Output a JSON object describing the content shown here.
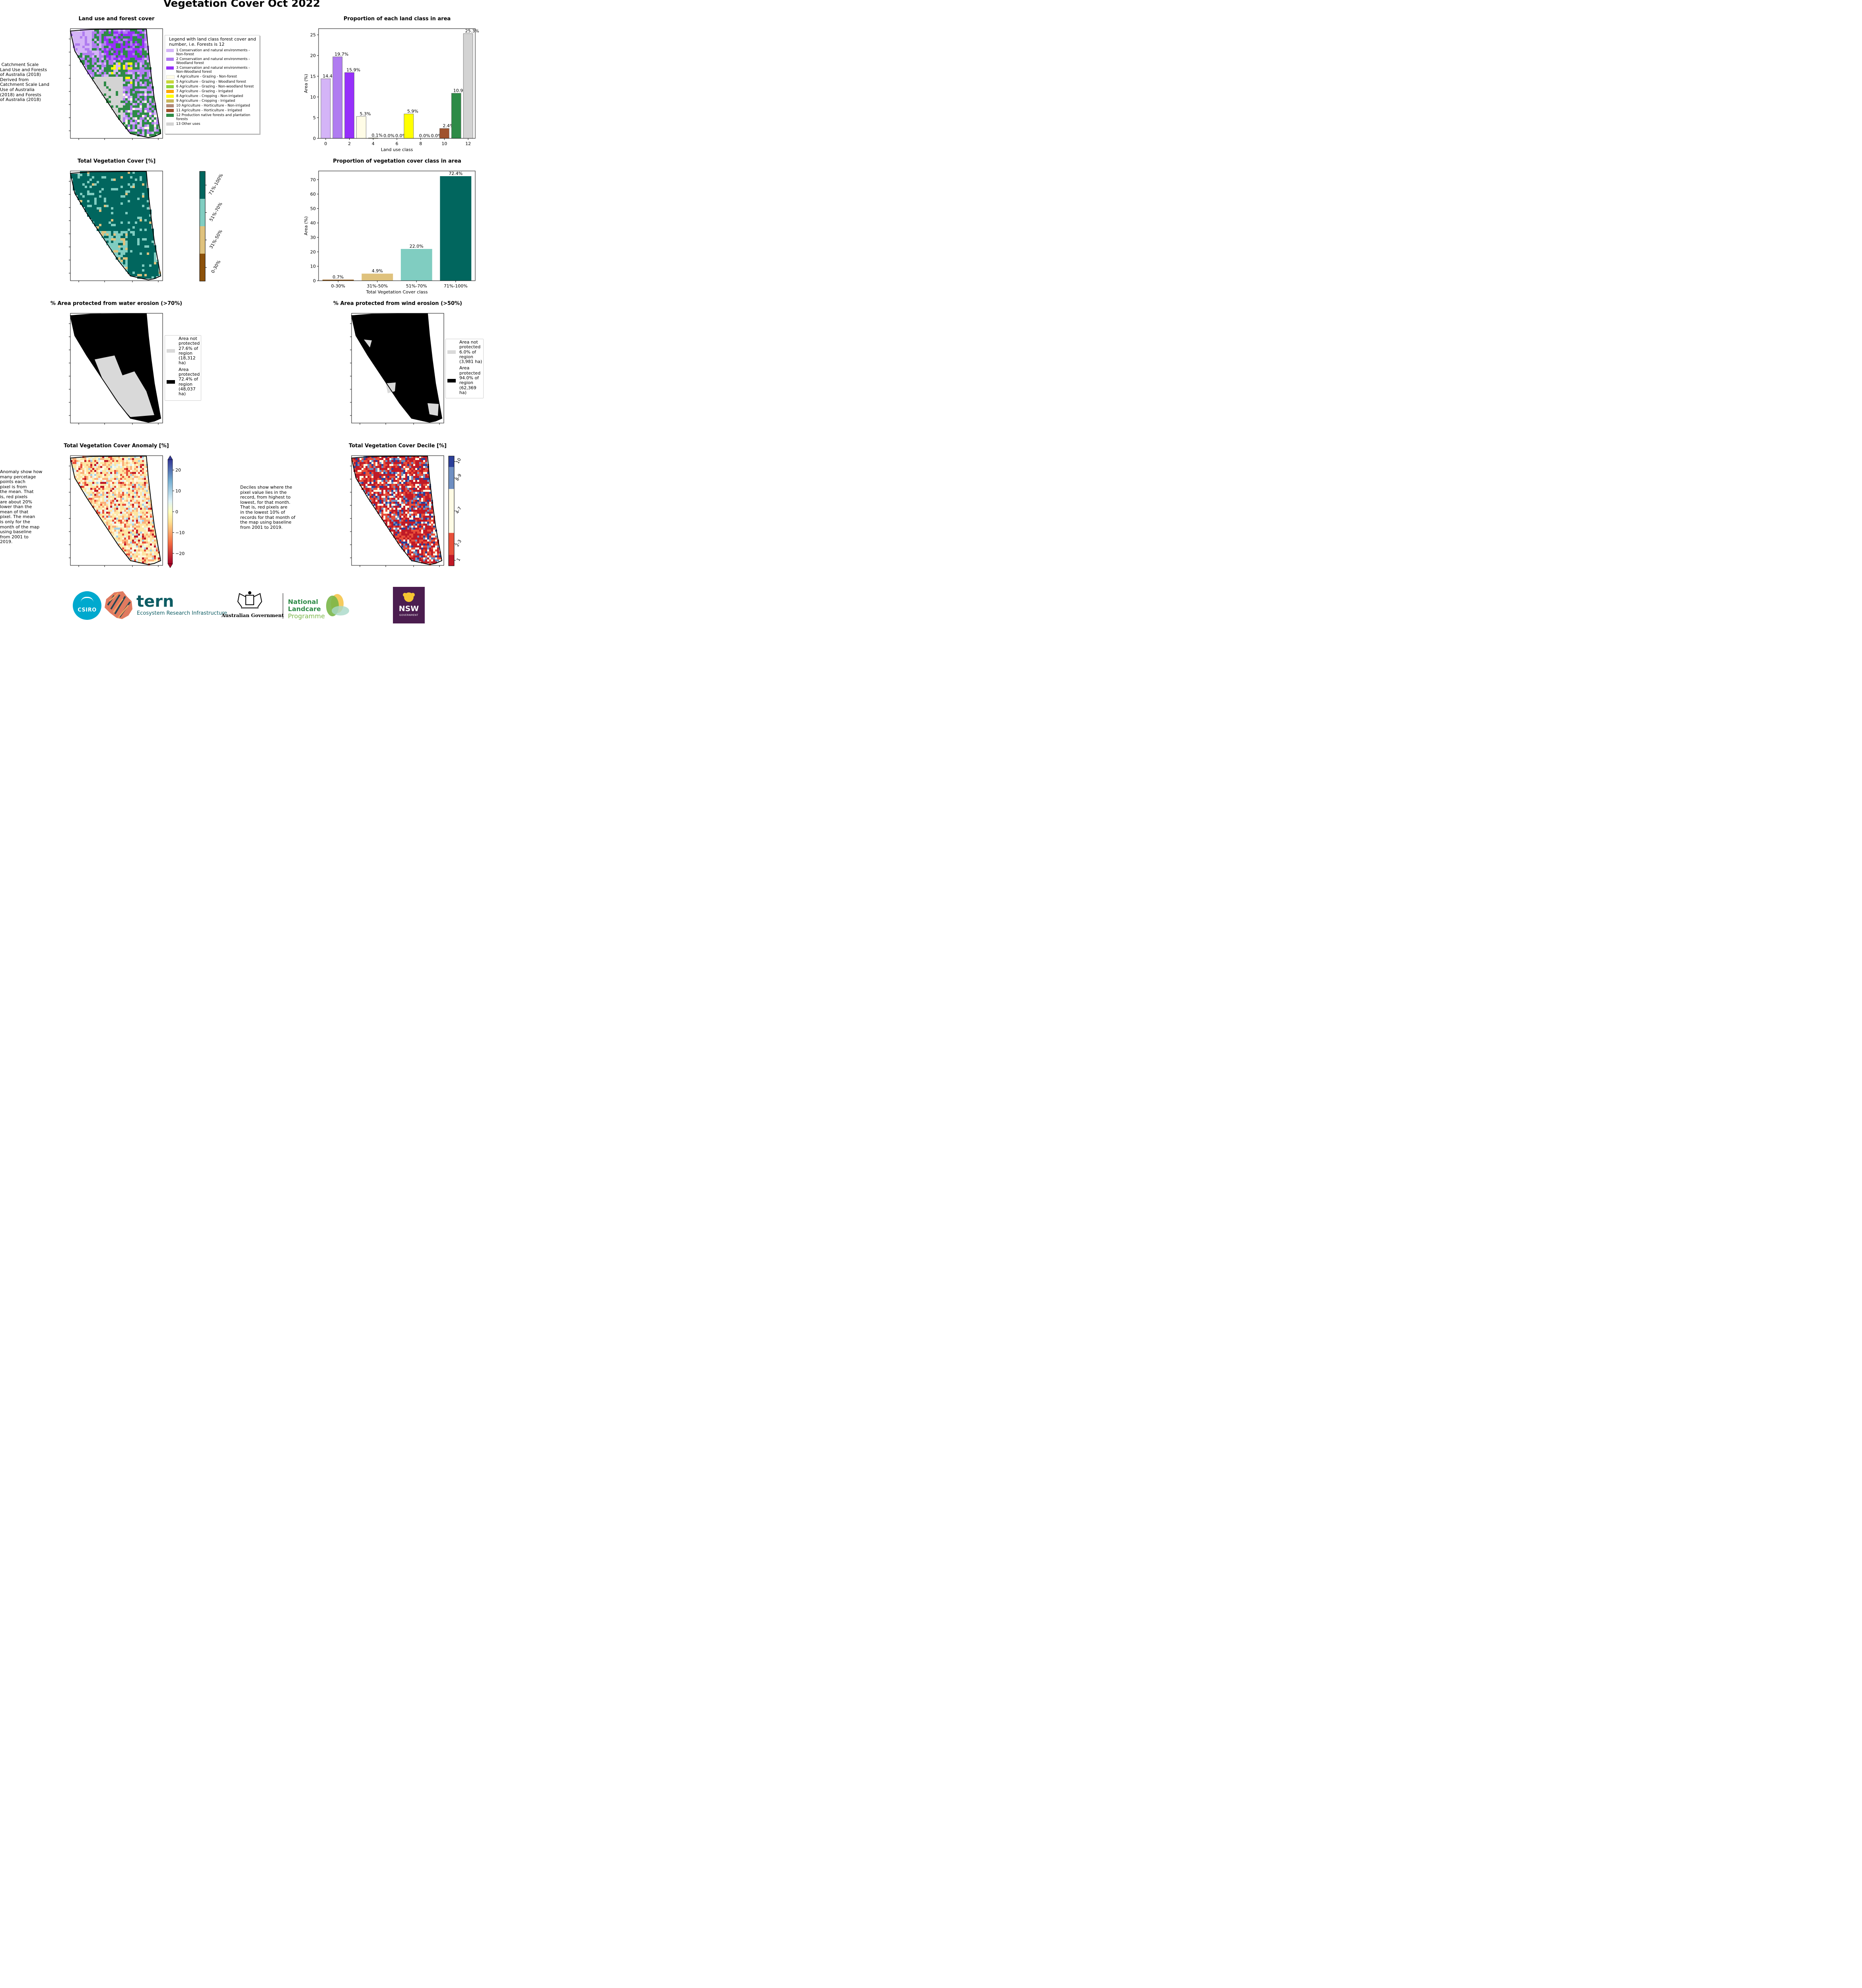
{
  "page": {
    "title": "Vegetation Cover Oct 2022",
    "panel_titles": {
      "landuse_map": "Land use and forest cover",
      "landuse_bar": "Proportion of each land class in area",
      "veg_map": "Total Vegetation Cover [%]",
      "veg_bar": "Proportion of vegetation cover class in area",
      "water_map": "% Area protected from water erosion (>70%)",
      "wind_map": "% Area protected from wind erosion (>50%)",
      "anomaly_map": "Total Vegetation Cover Anomaly [%]",
      "decile_map": "Total Vegetation Cover Decile [%]"
    },
    "notes": {
      "landuse": " Catchment Scale\nLand Use and Forests\nof Australia (2018)\nDerived from\nCatchment Scale Land\nUse of Australia\n(2018) and Forests\nof Australia (2018)",
      "anomaly": "Anomaly show how\nmany percetage\npoints each\npixel is from\nthe mean. That\nis, red pixels\nare about 20%\nlower than the\nmean of that\npixel. The mean\nis only for the\nmonth of the map\nusing baseline\nfrom 2001 to\n2019.",
      "decile": "Deciles show where the\npixel value lies in the\nrecord, from highest to\nlowest, for that month.\nThat is, red pixels are\nin the lowest 10% of\nrecords for that month of\nthe map using baseline\nfrom 2001 to 2019."
    },
    "landuse_legend": {
      "title": "Legend with land class forest cover and\nnumber, i.e. Forests is 12",
      "items": [
        {
          "label": "1 Conservation and natural environments -\nNon-forest",
          "color": "#d4b4f7"
        },
        {
          "label": "2 Conservation and natural environments -\nWoodland forest",
          "color": "#b07cf0"
        },
        {
          "label": "3 Conservation and natural environments -\nNon-Woodland forest",
          "color": "#9630fa"
        },
        {
          "label": "4 Agriculture - Grazing - Non-forest",
          "color": "#fffce6"
        },
        {
          "label": "5 Agriculture - Grazing - Woodland forest",
          "color": "#c8d63a"
        },
        {
          "label": "6 Agriculture - Grazing - Non-woodland forest",
          "color": "#8fd33a"
        },
        {
          "label": "7 Agriculture - Grazing - Irrigated",
          "color": "#ffa500"
        },
        {
          "label": "8 Agriculture - Cropping - Non-irrigated",
          "color": "#ffff00"
        },
        {
          "label": "9 Agriculture - Cropping - Irrigated",
          "color": "#c8b45a"
        },
        {
          "label": "10 Agriculture - Horticulture - Non-irrigated",
          "color": "#b08a78"
        },
        {
          "label": "11 Agriculture - Horticulture - Irrigated",
          "color": "#a0522d"
        },
        {
          "label": "12 Production native forests and plantation\nforests",
          "color": "#2e8b47"
        },
        {
          "label": "13 Other uses",
          "color": "#d3d3d3"
        }
      ]
    },
    "veg_colorbar": {
      "labels": [
        "0-30%",
        "31%-50%",
        "51%-70%",
        "71%-100%"
      ],
      "colors": [
        "#8c510a",
        "#dfc27d",
        "#80cdc1",
        "#01665e"
      ]
    },
    "water_legend": [
      {
        "label": "Area not\nprotected\n27.6% of\nregion\n(18,312\nha)",
        "color": "#d9d9d9"
      },
      {
        "label": "Area\nprotected\n72.4% of\nregion\n(48,037\nha)",
        "color": "#000000"
      }
    ],
    "wind_legend": [
      {
        "label": "Area not\nprotected\n6.0% of\nregion\n(3,981 ha)",
        "color": "#d9d9d9"
      },
      {
        "label": "Area\nprotected\n94.0% of\nregion\n(62,369\nha)",
        "color": "#000000"
      }
    ],
    "anomaly_colorbar": {
      "ticks": [
        "20",
        "10",
        "0",
        "−10",
        "−20"
      ],
      "values": [
        20,
        10,
        0,
        -10,
        -20
      ],
      "range": [
        -25,
        25
      ]
    },
    "decile_colorbar": {
      "labels": [
        "1",
        "2-3",
        "4-7",
        "8-9",
        "10"
      ]
    },
    "logos": {
      "csiro": "CSIRO",
      "tern": "tern",
      "tern_sub": "Ecosystem Research Infrastructure",
      "aus_gov": "Australian Government",
      "landcare_line1": "National",
      "landcare_line2": "Landcare",
      "landcare_line3": "Programme",
      "nsw": "NSW",
      "nsw_sub": "GOVERNMENT"
    }
  },
  "chart_data": [
    {
      "type": "bar",
      "title": "Proportion of each land class in area",
      "xlabel": "Land use class",
      "ylabel": "Area (%)",
      "x": [
        0,
        1,
        2,
        3,
        4,
        5,
        6,
        7,
        8,
        9,
        10,
        11,
        12
      ],
      "values": [
        14.4,
        19.7,
        15.9,
        5.3,
        0.1,
        0.0,
        0.0,
        5.9,
        0.0,
        0.0,
        2.4,
        10.9,
        25.3
      ],
      "labels": [
        "14.4%",
        "19.7%",
        "15.9%",
        "5.3%",
        "0.1%",
        "0.0%",
        "0.0%",
        "5.9%",
        "0.0%",
        "0.0%",
        "2.4%",
        "10.9%",
        "25.3%"
      ],
      "colors": [
        "#d4b4f7",
        "#b07cf0",
        "#9630fa",
        "#fffce6",
        "#c8d63a",
        "#8fd33a",
        "#ffa500",
        "#ffff00",
        "#c8b45a",
        "#b08a78",
        "#a0522d",
        "#2e8b47",
        "#d3d3d3"
      ],
      "xticks": [
        0,
        2,
        4,
        6,
        8,
        10,
        12
      ],
      "yticks": [
        0,
        5,
        10,
        15,
        20,
        25
      ],
      "xlim": [
        -0.6,
        12.6
      ],
      "ylim": [
        0,
        26.5
      ]
    },
    {
      "type": "bar",
      "title": "Proportion of vegetation cover class in area",
      "xlabel": "Total Vegetation Cover class",
      "ylabel": "Area (%)",
      "categories": [
        "0-30%",
        "31%-50%",
        "51%-70%",
        "71%-100%"
      ],
      "values": [
        0.7,
        4.9,
        22.0,
        72.4
      ],
      "labels": [
        "0.7%",
        "4.9%",
        "22.0%",
        "72.4%"
      ],
      "colors": [
        "#8c510a",
        "#dfc27d",
        "#80cdc1",
        "#01665e"
      ],
      "yticks": [
        0,
        10,
        20,
        30,
        40,
        50,
        60,
        70
      ],
      "ylim": [
        0,
        76
      ]
    }
  ]
}
